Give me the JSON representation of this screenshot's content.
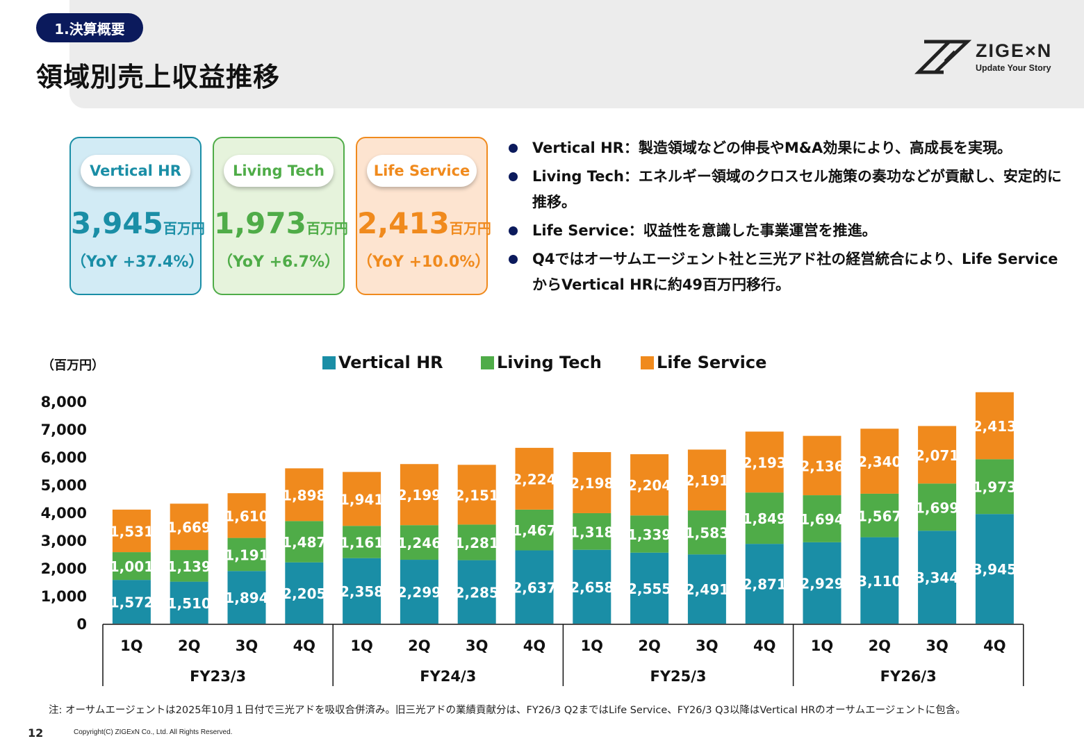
{
  "header": {
    "section_label": "1.決算概要",
    "title": "領域別売上収益推移",
    "logo_text": "ZIGE×N",
    "logo_tagline": "Update Your Story"
  },
  "kpis": [
    {
      "name": "Vertical HR",
      "value": "3,945",
      "unit": "百万円",
      "yoy": "（YoY +37.4%）",
      "color": "#1a8ea6",
      "bg": "#d2ebf5"
    },
    {
      "name": "Living Tech",
      "value": "1,973",
      "unit": "百万円",
      "yoy": "（YoY +6.7%）",
      "color": "#4fac48",
      "bg": "#e6f3dc"
    },
    {
      "name": "Life Service",
      "value": "2,413",
      "unit": "百万円",
      "yoy": "（YoY +10.0%）",
      "color": "#f08a1d",
      "bg": "#fde4d0"
    }
  ],
  "bullets": [
    "Vertical HR：製造領域などの伸長やM&A効果により、高成長を実現。",
    "Living Tech：エネルギー領域のクロスセル施策の奏功などが貢献し、安定的に推移。",
    "Life Service：収益性を意識した事業運営を推進。",
    "Q4ではオーサムエージェント社と三光アド社の経営統合により、Life ServiceからVertical HRに約49百万円移行。"
  ],
  "chart_data": {
    "type": "bar",
    "stacked": true,
    "unit_label": "（百万円）",
    "categories": [
      "1Q",
      "2Q",
      "3Q",
      "4Q",
      "1Q",
      "2Q",
      "3Q",
      "4Q",
      "1Q",
      "2Q",
      "3Q",
      "4Q",
      "1Q",
      "2Q",
      "3Q",
      "4Q"
    ],
    "groups": [
      {
        "label": "FY23/3",
        "count": 4
      },
      {
        "label": "FY24/3",
        "count": 4
      },
      {
        "label": "FY25/3",
        "count": 4
      },
      {
        "label": "FY26/3",
        "count": 4
      }
    ],
    "series": [
      {
        "name": "Vertical HR",
        "color": "#1a8ea6",
        "values": [
          1572,
          1510,
          1894,
          2205,
          2358,
          2299,
          2285,
          2637,
          2658,
          2555,
          2491,
          2871,
          2929,
          3110,
          3344,
          3945
        ]
      },
      {
        "name": "Living Tech",
        "color": "#4fac48",
        "values": [
          1001,
          1139,
          1191,
          1487,
          1161,
          1246,
          1281,
          1467,
          1318,
          1339,
          1583,
          1849,
          1694,
          1567,
          1699,
          1973
        ]
      },
      {
        "name": "Life Service",
        "color": "#f08a1d",
        "values": [
          1531,
          1669,
          1610,
          1898,
          1941,
          2199,
          2151,
          2224,
          2198,
          2204,
          2191,
          2193,
          2136,
          2340,
          2071,
          2413
        ]
      }
    ],
    "yticks": [
      "0",
      "1,000",
      "2,000",
      "3,000",
      "4,000",
      "5,000",
      "6,000",
      "7,000",
      "8,000"
    ],
    "ylim": [
      0,
      8000
    ],
    "legend_position": "top"
  },
  "footnote": "注: オーサムエージェントは2025年10月１日付で三光アドを吸収合併済み。旧三光アドの業績貢献分は、FY26/3 Q2まではLife Service、FY26/3 Q3以降はVertical HRのオーサムエージェントに包含。",
  "page_number": "12",
  "copyright": "Copyright(C)  ZIGExN Co., Ltd. All Rights Reserved."
}
